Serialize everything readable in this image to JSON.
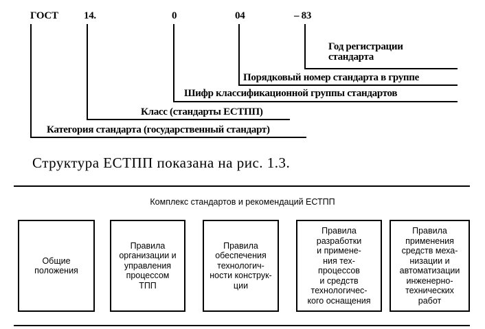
{
  "code": {
    "parts": [
      "ГОСТ",
      "14.",
      "0",
      "04",
      "– 83"
    ],
    "labels": {
      "year": "Год регистрации\nстандарта",
      "number": "Порядковый номер стандарта в группе",
      "group": "Шифр классификационной группы стандартов",
      "class": "Класс (стандарты ЕСТПП)",
      "category": "Категория стандарта (государственный стандарт)"
    }
  },
  "caption": "Структура ЕСТПП показана на рис. 1.3.",
  "complex": {
    "title": "Комплекс стандартов и рекомендаций ЕСТПП",
    "boxes": [
      "Общие\nположения",
      "Правила\nорганизации и\nуправления\nпроцессом\nТПП",
      "Правила\nобеспечения\nтехнологич-\nности конструк-\nции",
      "Правила\nразработки\nи примене-\nния тех-\nпроцессов\nи средств\nтехнологичес-\nкого оснащения",
      "Правила\nприменения\nсредств меха-\nнизации и\nавтоматизации\nинженерно-\nтехнических\nработ"
    ]
  }
}
